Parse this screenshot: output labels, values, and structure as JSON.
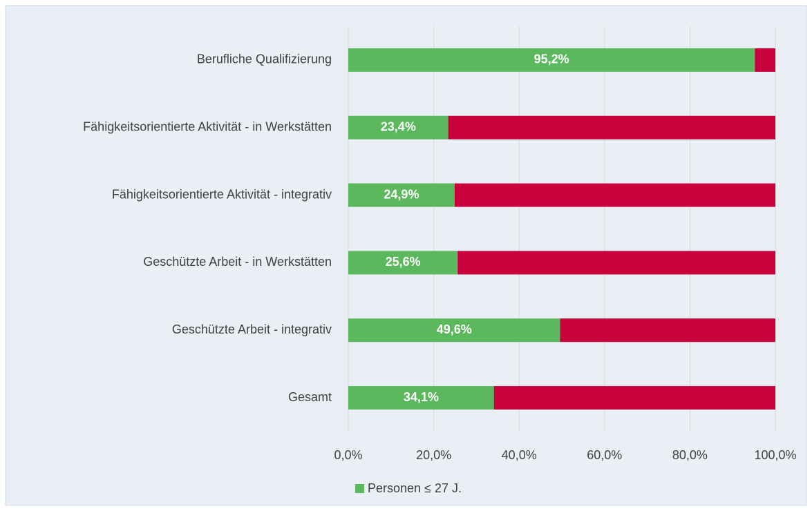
{
  "chart_data": {
    "type": "stacked-bar-horizontal",
    "categories": [
      "Berufliche Qualifizierung",
      "Fähigkeitsorientierte Aktivität - in Werkstätten",
      "Fähigkeitsorientierte Aktivität - integrativ",
      "Geschützte Arbeit - in Werkstätten",
      "Geschützte Arbeit - integrativ",
      "Gesamt"
    ],
    "series": [
      {
        "name": "Personen ≤ 27 J.",
        "color": "#5cb85c",
        "values": [
          95.2,
          23.4,
          24.9,
          25.6,
          49.6,
          34.1
        ],
        "value_labels": [
          "95,2%",
          "23,4%",
          "24,9%",
          "25,6%",
          "49,6%",
          "34,1%"
        ]
      },
      {
        "color": "#c8003c",
        "values": [
          4.8,
          76.6,
          75.1,
          74.4,
          50.4,
          65.9
        ]
      }
    ],
    "xlim": [
      0,
      100
    ],
    "xticks": [
      {
        "value": 0,
        "label": "0,0%"
      },
      {
        "value": 20,
        "label": "20,0%"
      },
      {
        "value": 40,
        "label": "40,0%"
      },
      {
        "value": 60,
        "label": "60,0%"
      },
      {
        "value": 80,
        "label": "80,0%"
      },
      {
        "value": 100,
        "label": "100,0%"
      }
    ],
    "grid": true,
    "legend": "bottom"
  }
}
